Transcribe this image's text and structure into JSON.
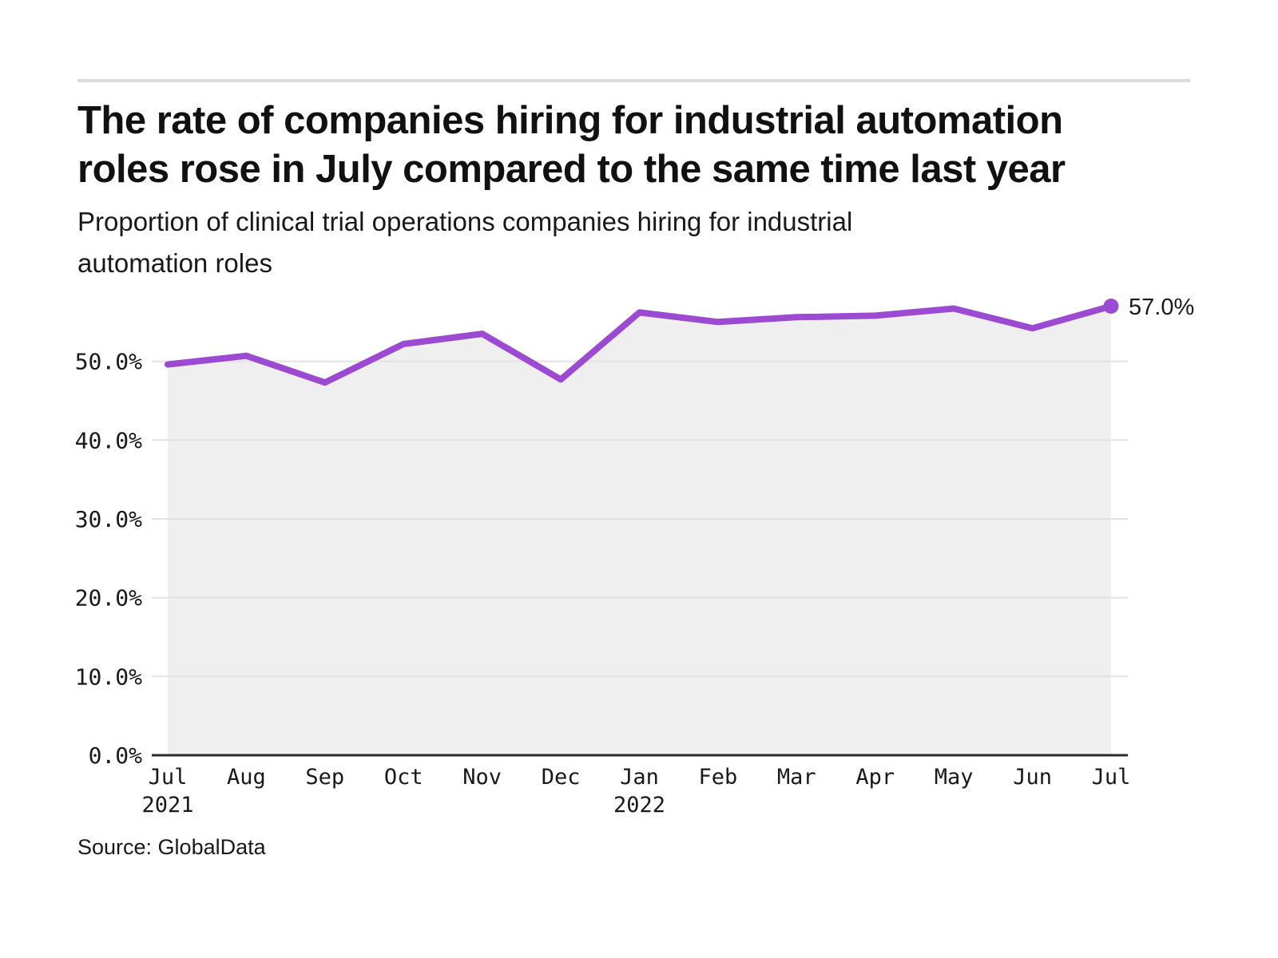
{
  "header": {
    "title_lines": [
      "The rate of companies hiring for industrial automation",
      "roles rose in July compared to the same time last year"
    ],
    "subtitle_lines": [
      "Proportion of clinical trial operations companies hiring for industrial",
      "automation roles"
    ]
  },
  "source_text": "Source: GlobalData",
  "chart_data": {
    "type": "area",
    "title": "Proportion of clinical trial operations companies hiring for industrial automation roles",
    "xlabel": "",
    "ylabel": "",
    "categories": [
      "Jul",
      "Aug",
      "Sep",
      "Oct",
      "Nov",
      "Dec",
      "Jan",
      "Feb",
      "Mar",
      "Apr",
      "May",
      "Jun",
      "Jul"
    ],
    "year_labels": [
      {
        "index": 0,
        "label": "2021"
      },
      {
        "index": 6,
        "label": "2022"
      }
    ],
    "series": [
      {
        "name": "Proportion of companies hiring for industrial automation roles",
        "values": [
          49.6,
          50.7,
          47.3,
          52.2,
          53.5,
          47.7,
          56.2,
          55.0,
          55.6,
          55.8,
          56.7,
          54.2,
          57.0
        ]
      }
    ],
    "end_point_label": "57.0%",
    "yticks": [
      {
        "value": 0,
        "label": "0.0%"
      },
      {
        "value": 10,
        "label": "10.0%"
      },
      {
        "value": 20,
        "label": "20.0%"
      },
      {
        "value": 30,
        "label": "30.0%"
      },
      {
        "value": 40,
        "label": "40.0%"
      },
      {
        "value": 50,
        "label": "50.0%"
      }
    ],
    "ylim": [
      0,
      59.5
    ],
    "grid": "horizontal",
    "legend": "none",
    "colors": {
      "line": "#9b4ad1",
      "end_dot": "#9b4ad1",
      "area_fill": "#efefef",
      "gridline": "#e2e2e2",
      "axis_line": "#2b2b2b",
      "tick_text": "#191919",
      "annotation_text": "#1a1a1a"
    }
  }
}
